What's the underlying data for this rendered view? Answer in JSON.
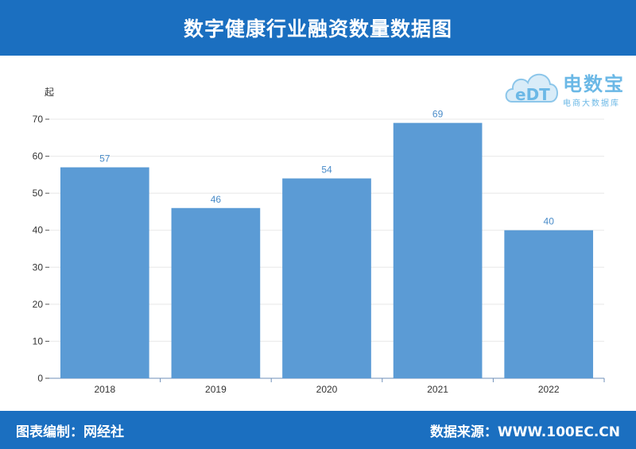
{
  "header": {
    "title": "数字健康行业融资数量数据图"
  },
  "logo": {
    "name": "电数宝",
    "subtitle": "电商大数据库",
    "mark": "eDT"
  },
  "footer": {
    "left": "图表编制：网经社",
    "right": "数据来源：WWW.100EC.CN"
  },
  "chart_data": {
    "type": "bar",
    "categories": [
      "2018",
      "2019",
      "2020",
      "2021",
      "2022"
    ],
    "values": [
      57,
      46,
      54,
      69,
      40
    ],
    "ylabel": "起",
    "ylim": [
      0,
      70
    ],
    "yticks": [
      0,
      10,
      20,
      30,
      40,
      50,
      60,
      70
    ],
    "grid": true,
    "colors": {
      "bar": "#5b9bd5",
      "label": "#4a8cc9",
      "grid": "#e8e8e8"
    }
  }
}
